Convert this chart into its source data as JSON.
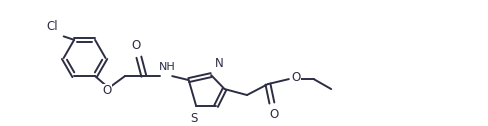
{
  "bg_color": "#ffffff",
  "line_color": "#2d2d44",
  "line_width": 1.4,
  "font_size": 8.5,
  "fig_width": 4.88,
  "fig_height": 1.26,
  "dpi": 100,
  "xlim": [
    0,
    9.0
  ],
  "ylim": [
    0,
    2.3
  ]
}
